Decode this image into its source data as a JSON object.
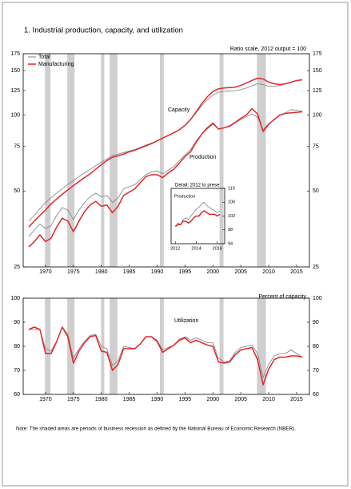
{
  "chart_data": [
    {
      "type": "line",
      "title": "1. Industrial production, capacity, and utilization",
      "subtitle": "Ratio scale, 2012 output = 100",
      "annotations": [
        "Capacity",
        "Production"
      ],
      "x": [
        1967,
        1968,
        1969,
        1970,
        1971,
        1972,
        1973,
        1974,
        1975,
        1976,
        1977,
        1978,
        1979,
        1980,
        1981,
        1982,
        1983,
        1984,
        1985,
        1986,
        1987,
        1988,
        1989,
        1990,
        1991,
        1992,
        1993,
        1994,
        1995,
        1996,
        1997,
        1998,
        1999,
        2000,
        2001,
        2002,
        2003,
        2004,
        2005,
        2006,
        2007,
        2008,
        2009,
        2010,
        2011,
        2012,
        2013,
        2014,
        2015,
        2016
      ],
      "series": [
        {
          "name": "Total",
          "color": "#7f7f7f",
          "capacity": [
            38,
            40,
            42.5,
            45,
            47,
            49,
            51,
            53,
            55,
            57,
            59,
            61,
            63,
            65,
            67,
            69,
            70,
            71,
            72,
            73,
            74.5,
            76,
            77.5,
            79,
            81,
            83,
            85,
            87.5,
            91,
            96,
            102,
            109,
            115,
            120,
            123,
            124,
            124.5,
            125,
            126,
            128,
            130.5,
            133,
            132,
            130,
            130,
            131,
            133,
            135,
            137,
            137.5
          ],
          "production": [
            33,
            35,
            37,
            35.5,
            36.5,
            40,
            43,
            42,
            38.5,
            42,
            45,
            47.5,
            49,
            47.5,
            48,
            45,
            47,
            51,
            52,
            53,
            55.5,
            58,
            59.5,
            60,
            58.5,
            60.5,
            62.5,
            66,
            69.5,
            73,
            79,
            84,
            88,
            92,
            88,
            89,
            90,
            93,
            96,
            98.5,
            101,
            98,
            87.5,
            92.5,
            95.5,
            100,
            102,
            105,
            104.5,
            103.5
          ]
        },
        {
          "name": "Manufacturing",
          "color": "#e3262b",
          "capacity": [
            36,
            38,
            40,
            42,
            44.5,
            46.5,
            48.5,
            50.5,
            52.5,
            54.5,
            56.5,
            58.5,
            61,
            63.5,
            66,
            68,
            69,
            70,
            71.5,
            72.5,
            74,
            75.5,
            77,
            79,
            81,
            83,
            85,
            87.5,
            91,
            96,
            103,
            111,
            118,
            124,
            127,
            128,
            128.5,
            129,
            131,
            134,
            137,
            140,
            139,
            135,
            133,
            132,
            133,
            135,
            137,
            138
          ],
          "production": [
            30,
            31.5,
            33.5,
            31.5,
            32.5,
            36,
            39,
            38,
            34.5,
            38,
            41.5,
            44,
            45.5,
            43.5,
            44,
            41,
            43.5,
            48,
            49.5,
            51,
            54,
            57,
            58,
            58,
            56.5,
            59,
            61,
            64.5,
            68.5,
            71.5,
            78,
            84,
            89,
            93,
            88,
            89,
            90.5,
            93.5,
            97,
            100,
            106,
            101,
            86,
            92,
            96,
            100,
            101.5,
            102,
            102.5,
            103
          ]
        }
      ],
      "xlim": [
        1966,
        2017.3
      ],
      "xticks": [
        1970,
        1975,
        1980,
        1985,
        1990,
        1995,
        2000,
        2005,
        2010,
        2015
      ],
      "ylim": [
        25,
        175
      ],
      "yticks": [
        25,
        50,
        75,
        100,
        125,
        150,
        175
      ],
      "log_scale": true,
      "shaded_periods": [
        [
          1969.9,
          1970.9
        ],
        [
          1973.9,
          1975.2
        ],
        [
          1980.0,
          1980.5
        ],
        [
          1981.5,
          1982.9
        ],
        [
          1990.5,
          1991.2
        ],
        [
          2001.2,
          2001.9
        ],
        [
          2007.9,
          2009.5
        ]
      ]
    },
    {
      "type": "line",
      "title": "Detail: 2012 to present",
      "annotations": [
        "Production"
      ],
      "x": [
        2012,
        2012.25,
        2012.5,
        2012.75,
        2013,
        2013.25,
        2013.5,
        2013.75,
        2014,
        2014.25,
        2014.5,
        2014.75,
        2015,
        2015.25,
        2015.5,
        2015.75,
        2016,
        2016.25
      ],
      "series": [
        {
          "color": "#7f7f7f",
          "values": [
            99,
            100,
            99.5,
            101,
            101.5,
            101,
            102,
            103,
            104,
            104.5,
            105.5,
            106,
            105,
            104.5,
            104,
            103.5,
            103,
            103.5
          ]
        },
        {
          "color": "#e3262b",
          "values": [
            99,
            99.5,
            99.5,
            100.5,
            100.5,
            100,
            100.5,
            101.5,
            102,
            102,
            103,
            103.5,
            103,
            102.5,
            102.5,
            102.5,
            102,
            102.5
          ]
        }
      ],
      "xlim": [
        2011.6,
        2016.7
      ],
      "xticks": [
        2012,
        2014,
        2016
      ],
      "ylim": [
        94,
        110
      ],
      "yticks": [
        94,
        98,
        102,
        106,
        110
      ]
    },
    {
      "type": "line",
      "subtitle": "Percent of capacity",
      "annotations": [
        "Utilization"
      ],
      "x": [
        1967,
        1968,
        1969,
        1970,
        1971,
        1972,
        1973,
        1974,
        1975,
        1976,
        1977,
        1978,
        1979,
        1980,
        1981,
        1982,
        1983,
        1984,
        1985,
        1986,
        1987,
        1988,
        1989,
        1990,
        1991,
        1992,
        1993,
        1994,
        1995,
        1996,
        1997,
        1998,
        1999,
        2000,
        2001,
        2002,
        2003,
        2004,
        2005,
        2006,
        2007,
        2008,
        2009,
        2010,
        2011,
        2012,
        2013,
        2014,
        2015,
        2016
      ],
      "series": [
        {
          "color": "#7f7f7f",
          "values": [
            87,
            87,
            87,
            79,
            78,
            82,
            88,
            85,
            75,
            79,
            82,
            84.5,
            85,
            80,
            79,
            72,
            74,
            80,
            79.5,
            79,
            81,
            84,
            84,
            82.5,
            78.5,
            79.5,
            80.5,
            83,
            84,
            82.5,
            83.5,
            82.5,
            81.5,
            81.5,
            75,
            73.5,
            74,
            77.5,
            79.5,
            80,
            80.5,
            77,
            67,
            72.5,
            76,
            77,
            77,
            78.5,
            77,
            75.5
          ]
        },
        {
          "color": "#e3262b",
          "values": [
            87,
            88,
            87,
            77,
            77,
            82,
            88,
            84,
            73,
            78,
            81.5,
            84,
            84.5,
            78,
            77.5,
            70,
            72.5,
            79,
            79,
            79,
            81,
            84,
            84,
            82,
            77.5,
            79,
            80.5,
            82.5,
            83.5,
            81.5,
            82.5,
            81.5,
            80.5,
            80,
            73.5,
            73,
            73.5,
            76.5,
            78.5,
            79,
            79.5,
            74.5,
            64,
            70.5,
            74.5,
            75.5,
            75.5,
            76,
            76,
            75.5
          ]
        }
      ],
      "xlim": [
        1966,
        2017.3
      ],
      "xticks": [
        1970,
        1975,
        1980,
        1985,
        1990,
        1995,
        2000,
        2005,
        2010,
        2015
      ],
      "ylim": [
        60,
        100
      ],
      "yticks": [
        60,
        70,
        80,
        90,
        100
      ],
      "shaded_periods": [
        [
          1969.9,
          1970.9
        ],
        [
          1973.9,
          1975.2
        ],
        [
          1980.0,
          1980.5
        ],
        [
          1981.5,
          1982.9
        ],
        [
          1990.5,
          1991.2
        ],
        [
          2001.2,
          2001.9
        ],
        [
          2007.9,
          2009.5
        ]
      ]
    }
  ],
  "note": "Note: The shaded areas are periods of business recession as defined by the National Bureau of Economic Research (NBER)."
}
